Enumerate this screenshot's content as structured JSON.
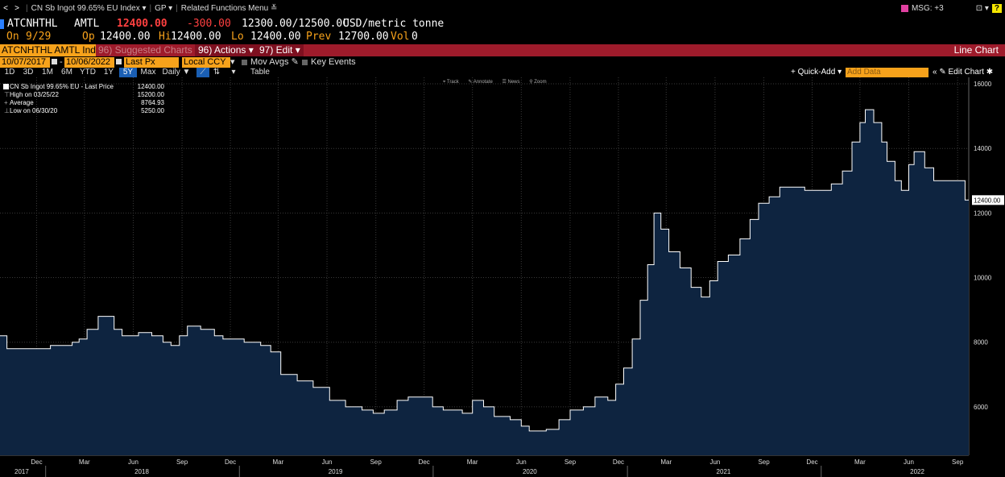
{
  "nav": {
    "back": "<",
    "forward": ">",
    "security": "CN Sb Ingot 99.65% EU Index ▾",
    "function": "GP ▾",
    "related": "Related Functions Menu ≚",
    "msg": "MSG: +3",
    "help": "?"
  },
  "quote": {
    "ticker": "ATCNHTHL",
    "source": "AMTL",
    "last": "12400.00",
    "change": "-300.00",
    "bidask": "12300.00/12500.0C",
    "unit": "USD/metric tonne",
    "on_label": "On",
    "on_value": "9/29",
    "op_label": "Op",
    "op_value": "12400.00",
    "hi_label": "Hi",
    "hi_value": "12400.00",
    "lo_label": "Lo",
    "lo_value": "12400.00",
    "prev_label": "Prev",
    "prev_value": "12700.00",
    "vol_label": "Vol",
    "vol_value": "0"
  },
  "actionbar": {
    "ticker_input": "ATCNHTHL AMTL Ind",
    "suggested": "96) Suggested Charts",
    "actions": "96) Actions ▾",
    "edit": "97) Edit ▾",
    "title": "Line Chart"
  },
  "settings": {
    "start_date": "10/07/2017",
    "end_date": "10/06/2022",
    "dash": "-",
    "field": "Last Px",
    "currency": "Local CCY",
    "mov_avgs": "Mov Avgs",
    "key_events": "Key Events"
  },
  "periods": {
    "items": [
      "1D",
      "3D",
      "1M",
      "6M",
      "YTD",
      "1Y",
      "5Y",
      "Max"
    ],
    "active": "5Y",
    "frequency": "Daily ▼",
    "table": "Table",
    "quick_add": "+ Quick-Add ▾",
    "add_data": "Add Data",
    "edit_chart": "« ✎ Edit Chart ✱"
  },
  "toolbar": [
    "⌖ Track",
    "✎ Annotate",
    "☰ News",
    "⚲ Zoom"
  ],
  "legend": {
    "series_label": "CN Sb Ingot 99.65% EU - Last Price",
    "series_value": "12400.00",
    "high_label": "High on 03/25/22",
    "high_value": "15200.00",
    "avg_label": "Average",
    "avg_value": "8764.93",
    "low_label": "Low on 06/30/20",
    "low_value": "5250.00"
  },
  "chart_data": {
    "type": "area",
    "title": "",
    "xlabel": "",
    "ylabel": "",
    "ylim": [
      4500,
      16200
    ],
    "xlim": [
      "2017-10-07",
      "2022-10-06"
    ],
    "y_ticks": [
      6000,
      8000,
      10000,
      12000,
      14000,
      16000
    ],
    "y_tick_labels": [
      "6000",
      "8000",
      "10000",
      "12000",
      "14000",
      "16000"
    ],
    "last_price_label": "12400.00",
    "colors": {
      "fill": "#0e2440",
      "line": "#ffffff",
      "grid": "#3a3a3a",
      "last_tag": "#ffffff"
    },
    "grid": true,
    "month_ticks": [
      {
        "label": "Dec",
        "date": "2017-12-15"
      },
      {
        "label": "Mar",
        "date": "2018-03-15"
      },
      {
        "label": "Jun",
        "date": "2018-06-15"
      },
      {
        "label": "Sep",
        "date": "2018-09-15"
      },
      {
        "label": "Dec",
        "date": "2018-12-15"
      },
      {
        "label": "Mar",
        "date": "2019-03-15"
      },
      {
        "label": "Jun",
        "date": "2019-06-15"
      },
      {
        "label": "Sep",
        "date": "2019-09-15"
      },
      {
        "label": "Dec",
        "date": "2019-12-15"
      },
      {
        "label": "Mar",
        "date": "2020-03-15"
      },
      {
        "label": "Jun",
        "date": "2020-06-15"
      },
      {
        "label": "Sep",
        "date": "2020-09-15"
      },
      {
        "label": "Dec",
        "date": "2020-12-15"
      },
      {
        "label": "Mar",
        "date": "2021-03-15"
      },
      {
        "label": "Jun",
        "date": "2021-06-15"
      },
      {
        "label": "Sep",
        "date": "2021-09-15"
      },
      {
        "label": "Dec",
        "date": "2021-12-15"
      },
      {
        "label": "Mar",
        "date": "2022-03-15"
      },
      {
        "label": "Jun",
        "date": "2022-06-15"
      },
      {
        "label": "Sep",
        "date": "2022-09-15"
      }
    ],
    "year_ticks": [
      {
        "label": "2017",
        "date": "2017-10-07"
      },
      {
        "label": "2018",
        "date": "2018-07-01"
      },
      {
        "label": "2019",
        "date": "2019-07-01"
      },
      {
        "label": "2020",
        "date": "2020-07-01"
      },
      {
        "label": "2021",
        "date": "2021-07-01"
      },
      {
        "label": "2022",
        "date": "2022-07-01"
      }
    ],
    "year_separators": [
      "2018-01-01",
      "2019-01-01",
      "2020-01-01",
      "2021-01-01",
      "2022-01-01"
    ],
    "series": [
      {
        "x": [
          "2017-10-07",
          "2017-10-20",
          "2017-12-01",
          "2018-01-10",
          "2018-02-20",
          "2018-03-05",
          "2018-03-20",
          "2018-04-10",
          "2018-05-10",
          "2018-05-25",
          "2018-06-25",
          "2018-07-20",
          "2018-08-10",
          "2018-08-25",
          "2018-09-10",
          "2018-09-25",
          "2018-10-20",
          "2018-11-15",
          "2018-12-01",
          "2019-01-10",
          "2019-02-10",
          "2019-03-01",
          "2019-03-20",
          "2019-04-20",
          "2019-05-20",
          "2019-06-20",
          "2019-07-20",
          "2019-08-20",
          "2019-09-10",
          "2019-10-01",
          "2019-10-25",
          "2019-11-15",
          "2019-12-10",
          "2019-12-31",
          "2020-01-20",
          "2020-02-10",
          "2020-02-25",
          "2020-03-15",
          "2020-04-05",
          "2020-04-25",
          "2020-05-25",
          "2020-06-15",
          "2020-06-30",
          "2020-08-01",
          "2020-08-25",
          "2020-09-15",
          "2020-10-10",
          "2020-11-01",
          "2020-11-25",
          "2020-12-10",
          "2020-12-25",
          "2021-01-10",
          "2021-01-25",
          "2021-02-08",
          "2021-02-20",
          "2021-03-05",
          "2021-03-20",
          "2021-04-10",
          "2021-05-01",
          "2021-05-20",
          "2021-06-05",
          "2021-06-20",
          "2021-07-10",
          "2021-08-01",
          "2021-08-20",
          "2021-09-05",
          "2021-09-25",
          "2021-10-15",
          "2021-11-10",
          "2021-12-01",
          "2021-12-31",
          "2022-01-20",
          "2022-02-10",
          "2022-02-28",
          "2022-03-15",
          "2022-03-25",
          "2022-04-10",
          "2022-04-25",
          "2022-05-05",
          "2022-05-20",
          "2022-06-01",
          "2022-06-15",
          "2022-06-25",
          "2022-07-15",
          "2022-08-01",
          "2022-08-20",
          "2022-09-15",
          "2022-09-29",
          "2022-10-06"
        ],
        "y": [
          8200,
          7800,
          7800,
          7900,
          8000,
          8100,
          8400,
          8800,
          8400,
          8200,
          8300,
          8200,
          8000,
          7900,
          8200,
          8500,
          8400,
          8200,
          8100,
          8000,
          7900,
          7700,
          7000,
          6800,
          6600,
          6200,
          6000,
          5900,
          5800,
          5900,
          6200,
          6300,
          6300,
          6000,
          5900,
          5900,
          5800,
          6200,
          6000,
          5700,
          5600,
          5400,
          5250,
          5300,
          5600,
          5900,
          6000,
          6300,
          6200,
          6700,
          7200,
          8100,
          9300,
          10400,
          12000,
          11500,
          10800,
          10300,
          9700,
          9400,
          9900,
          10500,
          10700,
          11200,
          11800,
          12300,
          12500,
          12800,
          12800,
          12700,
          12700,
          12900,
          13300,
          14200,
          14800,
          15200,
          14800,
          14200,
          13600,
          13000,
          12700,
          13500,
          13900,
          13400,
          13000,
          13000,
          13000,
          12400,
          12400
        ]
      }
    ]
  }
}
